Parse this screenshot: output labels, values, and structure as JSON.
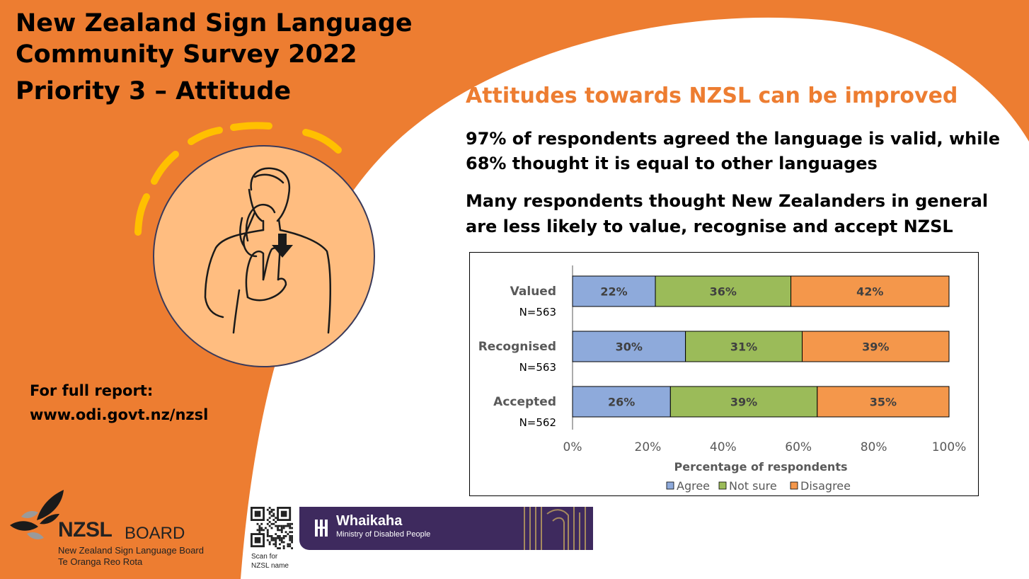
{
  "title": {
    "line1": "New Zealand Sign Language",
    "line2": "Community Survey 2022",
    "line3": "Priority 3 – Attitude"
  },
  "heading": "Attitudes towards NZSL can be improved",
  "paragraphs": {
    "p1_line1": "97% of respondents agreed the language is valid, while",
    "p1_line2": "68% thought it is equal to other languages",
    "p2_line1": "Many respondents thought New Zealanders in general",
    "p2_line2": "are less likely to value, recognise and accept NZSL"
  },
  "report": {
    "line1": "For full report:",
    "line2": "www.odi.govt.nz/nzsl"
  },
  "logo": {
    "nzsl": "NZSL",
    "board": "BOARD",
    "sub1": "New Zealand Sign Language Board",
    "sub2": "Te Oranga Reo Rota"
  },
  "qr": {
    "line1": "Scan for",
    "line2": "NZSL name"
  },
  "whaikaha": {
    "name": "Whaikaha",
    "sub": "Ministry of Disabled People"
  },
  "colors": {
    "orange": "#ED7D31",
    "agree": "#8EAADB",
    "not_sure": "#9BBB59",
    "disagree": "#F4974B",
    "circle": "#FFBD80",
    "arc": "#FFC000"
  },
  "chart_data": {
    "type": "bar",
    "orientation": "horizontal",
    "stacked": true,
    "categories": [
      "Valued",
      "Recognised",
      "Accepted"
    ],
    "n_labels": [
      "N=563",
      "N=563",
      "N=562"
    ],
    "series": [
      {
        "name": "Agree",
        "values": [
          22,
          30,
          26
        ],
        "labels": [
          "22%",
          "30%",
          "26%"
        ]
      },
      {
        "name": "Not sure",
        "values": [
          36,
          31,
          39
        ],
        "labels": [
          "36%",
          "31%",
          "39%"
        ]
      },
      {
        "name": "Disagree",
        "values": [
          42,
          39,
          35
        ],
        "labels": [
          "42%",
          "39%",
          "35%"
        ]
      }
    ],
    "xlabel": "Percentage of respondents",
    "xlim": [
      0,
      100
    ],
    "xticks": [
      "0%",
      "20%",
      "40%",
      "60%",
      "80%",
      "100%"
    ],
    "legend": "bottom",
    "grid": false
  }
}
